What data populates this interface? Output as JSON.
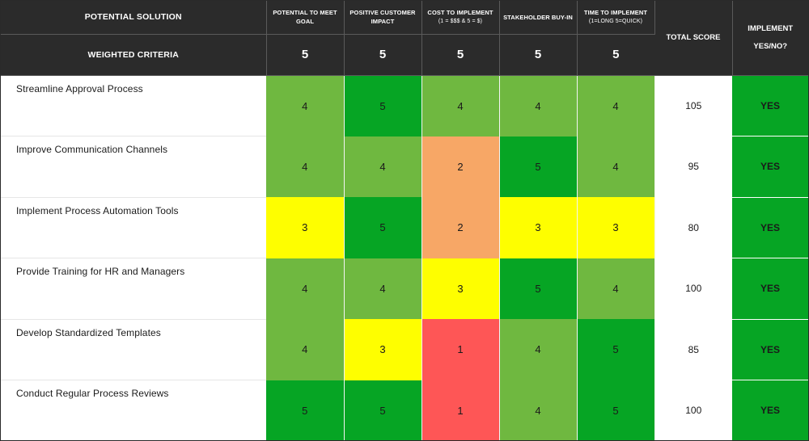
{
  "header": {
    "solution_label": "POTENTIAL SOLUTION",
    "weighted_label": "WEIGHTED CRITERIA",
    "total_label": "TOTAL SCORE",
    "implement_label_1": "IMPLEMENT",
    "implement_label_2": "YES/NO?",
    "criteria": [
      {
        "line1": "POTENTIAL TO MEET",
        "line2": "GOAL",
        "sub": "",
        "weight": "5"
      },
      {
        "line1": "POSITIVE CUSTOMER",
        "line2": "IMPACT",
        "sub": "",
        "weight": "5"
      },
      {
        "line1": "COST TO IMPLEMENT",
        "line2": "",
        "sub": "(1 = $$$ & 5 = $)",
        "weight": "5"
      },
      {
        "line1": "STAKEHOLDER BUY-IN",
        "line2": "",
        "sub": "",
        "weight": "5"
      },
      {
        "line1": "TIME TO IMPLEMENT",
        "line2": "",
        "sub": "(1=LONG 5=QUICK)",
        "weight": "5"
      }
    ]
  },
  "rows": [
    {
      "name": "Streamline Approval Process",
      "scores": [
        "4",
        "5",
        "4",
        "4",
        "4"
      ],
      "total": "105",
      "implement": "YES"
    },
    {
      "name": "Improve Communication Channels",
      "scores": [
        "4",
        "4",
        "2",
        "5",
        "4"
      ],
      "total": "95",
      "implement": "YES"
    },
    {
      "name": "Implement Process Automation Tools",
      "scores": [
        "3",
        "5",
        "2",
        "3",
        "3"
      ],
      "total": "80",
      "implement": "YES"
    },
    {
      "name": "Provide Training for HR and Managers",
      "scores": [
        "4",
        "4",
        "3",
        "5",
        "4"
      ],
      "total": "100",
      "implement": "YES"
    },
    {
      "name": "Develop Standardized Templates",
      "scores": [
        "4",
        "3",
        "1",
        "4",
        "5"
      ],
      "total": "85",
      "implement": "YES"
    },
    {
      "name": "Conduct Regular Process Reviews",
      "scores": [
        "5",
        "5",
        "1",
        "4",
        "5"
      ],
      "total": "100",
      "implement": "YES"
    }
  ],
  "colors": {
    "score_1": "#fe5656",
    "score_2": "#f7a766",
    "score_3": "#fefe00",
    "score_4": "#6fb840",
    "score_5": "#06a524",
    "implement_yes": "#06a524",
    "header_bg": "#2b2b2b"
  }
}
